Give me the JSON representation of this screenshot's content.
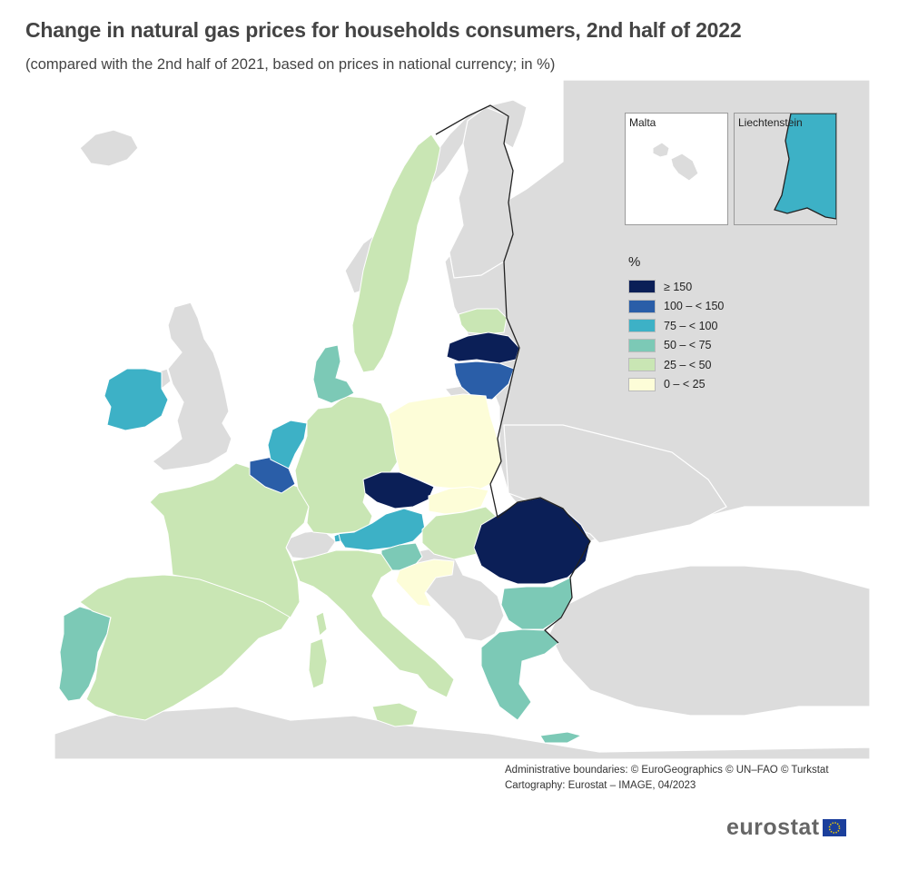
{
  "title": "Change in natural gas prices for households consumers, 2nd half of 2022",
  "subtitle": "(compared with the 2nd half of 2021, based on prices in national currency; in %)",
  "insets": {
    "malta": "Malta",
    "liechtenstein": "Liechtenstein"
  },
  "legend": {
    "title": "%",
    "classes": [
      {
        "label": "≥ 150",
        "color": "#0b1f57"
      },
      {
        "label": "100 – < 150",
        "color": "#2a5ea8"
      },
      {
        "label": "75 – < 100",
        "color": "#3db1c6"
      },
      {
        "label": "50 – < 75",
        "color": "#7cc9b6"
      },
      {
        "label": "25 – < 50",
        "color": "#c9e6b4"
      },
      {
        "label": "0 – < 25",
        "color": "#fdfdd8"
      }
    ]
  },
  "colors": {
    "no_data": "#dcdcdc",
    "sea": "#ffffff",
    "border": "#222222"
  },
  "countries": [
    {
      "id": "latvia",
      "class": 0
    },
    {
      "id": "czechia",
      "class": 0
    },
    {
      "id": "romania",
      "class": 0
    },
    {
      "id": "lithuania",
      "class": 1
    },
    {
      "id": "belgium",
      "class": 1
    },
    {
      "id": "ireland",
      "class": 2
    },
    {
      "id": "netherlands",
      "class": 2
    },
    {
      "id": "austria",
      "class": 2
    },
    {
      "id": "liechtenstein",
      "class": 2
    },
    {
      "id": "denmark",
      "class": 3
    },
    {
      "id": "portugal",
      "class": 3
    },
    {
      "id": "slovenia",
      "class": 3
    },
    {
      "id": "bulgaria",
      "class": 3
    },
    {
      "id": "greece",
      "class": 3
    },
    {
      "id": "sweden",
      "class": 4
    },
    {
      "id": "estonia",
      "class": 4
    },
    {
      "id": "germany",
      "class": 4
    },
    {
      "id": "france",
      "class": 4
    },
    {
      "id": "spain",
      "class": 4
    },
    {
      "id": "italy",
      "class": 4
    },
    {
      "id": "hungary",
      "class": 4
    },
    {
      "id": "poland",
      "class": 5
    },
    {
      "id": "slovakia",
      "class": 5
    },
    {
      "id": "croatia",
      "class": 5
    }
  ],
  "credits": [
    "Administrative boundaries: © EuroGeographics © UN–FAO © Turkstat",
    "Cartography: Eurostat – IMAGE, 04/2023"
  ],
  "logo_text": "eurostat"
}
